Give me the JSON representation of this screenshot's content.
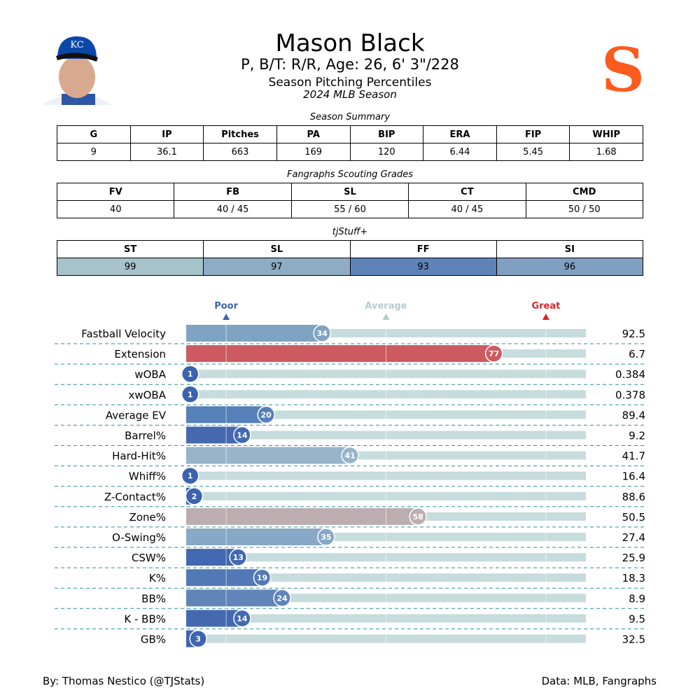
{
  "header": {
    "name": "Mason Black",
    "info": "P, B/T: R/R, Age: 26, 6' 3\"/228",
    "subtitle": "Season Pitching Percentiles",
    "season": "2024 MLB Season",
    "team_logo": "SF",
    "team_color": "#fd5a1e",
    "player_cap_logo": "KC"
  },
  "summary": {
    "caption": "Season Summary",
    "headers": [
      "G",
      "IP",
      "Pitches",
      "PA",
      "BIP",
      "ERA",
      "FIP",
      "WHIP"
    ],
    "values": [
      "9",
      "36.1",
      "663",
      "169",
      "120",
      "6.44",
      "5.45",
      "1.68"
    ]
  },
  "grades": {
    "caption": "Fangraphs Scouting Grades",
    "headers": [
      "FV",
      "FB",
      "SL",
      "CT",
      "CMD"
    ],
    "values": [
      "40",
      "40 / 45",
      "55 / 60",
      "40 / 45",
      "50 / 50"
    ]
  },
  "tjstuff": {
    "caption": "tjStuff+",
    "headers": [
      "ST",
      "SL",
      "FF",
      "SI"
    ],
    "values": [
      "99",
      "97",
      "93",
      "96"
    ],
    "colors": [
      "#a6c2ca",
      "#8eacc4",
      "#5e83b8",
      "#80a0c2"
    ]
  },
  "chart_data": {
    "type": "bar",
    "orientation": "horizontal",
    "xlim": [
      0,
      100
    ],
    "markers": [
      {
        "label": "Poor",
        "value": 10,
        "color": "#3b63ad"
      },
      {
        "label": "Average",
        "value": 50,
        "color": "#b3ccd1"
      },
      {
        "label": "Great",
        "value": 90,
        "color": "#d62728"
      }
    ],
    "rows": [
      {
        "label": "Fastball Velocity",
        "percentile": 34,
        "value": "92.5",
        "color": "#7fa3c2"
      },
      {
        "label": "Extension",
        "percentile": 77,
        "value": "6.7",
        "color": "#cc5a60"
      },
      {
        "label": "wOBA",
        "percentile": 1,
        "value": "0.384",
        "color": "#3b63ad"
      },
      {
        "label": "xwOBA",
        "percentile": 1,
        "value": "0.378",
        "color": "#3b63ad"
      },
      {
        "label": "Average EV",
        "percentile": 20,
        "value": "89.4",
        "color": "#5580b8"
      },
      {
        "label": "Barrel%",
        "percentile": 14,
        "value": "9.2",
        "color": "#4469b0"
      },
      {
        "label": "Hard-Hit%",
        "percentile": 41,
        "value": "41.7",
        "color": "#97b4c9"
      },
      {
        "label": "Whiff%",
        "percentile": 1,
        "value": "16.4",
        "color": "#3b63ad"
      },
      {
        "label": "Z-Contact%",
        "percentile": 2,
        "value": "88.6",
        "color": "#3c64ad"
      },
      {
        "label": "Zone%",
        "percentile": 58,
        "value": "50.5",
        "color": "#bcadb0"
      },
      {
        "label": "O-Swing%",
        "percentile": 35,
        "value": "27.4",
        "color": "#87a8c6"
      },
      {
        "label": "CSW%",
        "percentile": 13,
        "value": "25.9",
        "color": "#4168b0"
      },
      {
        "label": "K%",
        "percentile": 19,
        "value": "18.3",
        "color": "#5279b5"
      },
      {
        "label": "BB%",
        "percentile": 24,
        "value": "8.9",
        "color": "#6185b8"
      },
      {
        "label": "K - BB%",
        "percentile": 14,
        "value": "9.5",
        "color": "#4469b0"
      },
      {
        "label": "GB%",
        "percentile": 3,
        "value": "32.5",
        "color": "#3e65ae"
      }
    ]
  },
  "footer": {
    "left": "By: Thomas Nestico (@TJStats)",
    "right": "Data: MLB, Fangraphs"
  }
}
